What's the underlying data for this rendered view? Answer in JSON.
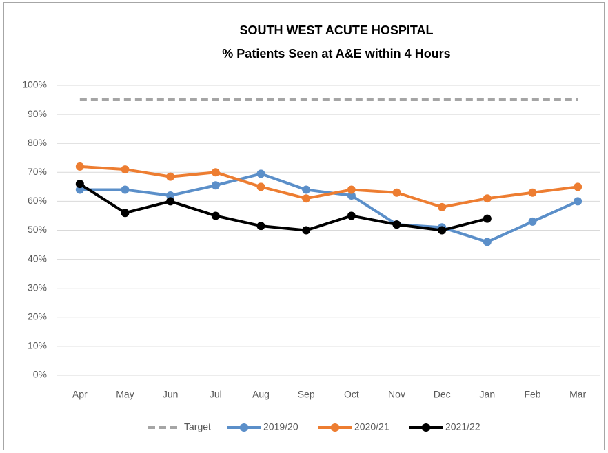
{
  "chart_data": {
    "type": "line",
    "title": "SOUTH WEST ACUTE HOSPITAL",
    "subtitle": "% Patients Seen at A&E within 4 Hours",
    "categories": [
      "Apr",
      "May",
      "Jun",
      "Jul",
      "Aug",
      "Sep",
      "Oct",
      "Nov",
      "Dec",
      "Jan",
      "Feb",
      "Mar"
    ],
    "series": [
      {
        "name": "Target",
        "color": "#a5a5a5",
        "line_style": "dashed",
        "markers": false,
        "values": [
          95,
          95,
          95,
          95,
          95,
          95,
          95,
          95,
          95,
          95,
          95,
          95
        ]
      },
      {
        "name": "2019/20",
        "color": "#5b8fc9",
        "line_style": "solid",
        "markers": true,
        "values": [
          64,
          64,
          62,
          65.5,
          69.5,
          64,
          62,
          52,
          51,
          46,
          53,
          60
        ]
      },
      {
        "name": "2020/21",
        "color": "#ed7d31",
        "line_style": "solid",
        "markers": true,
        "values": [
          72,
          71,
          68.5,
          70,
          65,
          61,
          64,
          63,
          58,
          61,
          63,
          65
        ]
      },
      {
        "name": "2021/22",
        "color": "#000000",
        "line_style": "solid",
        "markers": true,
        "values": [
          66,
          56,
          60,
          55,
          51.5,
          50,
          55,
          52,
          50,
          54,
          null,
          null
        ]
      }
    ],
    "ylim": [
      0,
      100
    ],
    "yticks": [
      {
        "value": 0,
        "label": "0%"
      },
      {
        "value": 10,
        "label": "10%"
      },
      {
        "value": 20,
        "label": "20%"
      },
      {
        "value": 30,
        "label": "30%"
      },
      {
        "value": 40,
        "label": "40%"
      },
      {
        "value": 50,
        "label": "50%"
      },
      {
        "value": 60,
        "label": "60%"
      },
      {
        "value": 70,
        "label": "70%"
      },
      {
        "value": 80,
        "label": "80%"
      },
      {
        "value": 90,
        "label": "90%"
      },
      {
        "value": 100,
        "label": "100%"
      }
    ],
    "grid": true,
    "legend": "bottom"
  }
}
